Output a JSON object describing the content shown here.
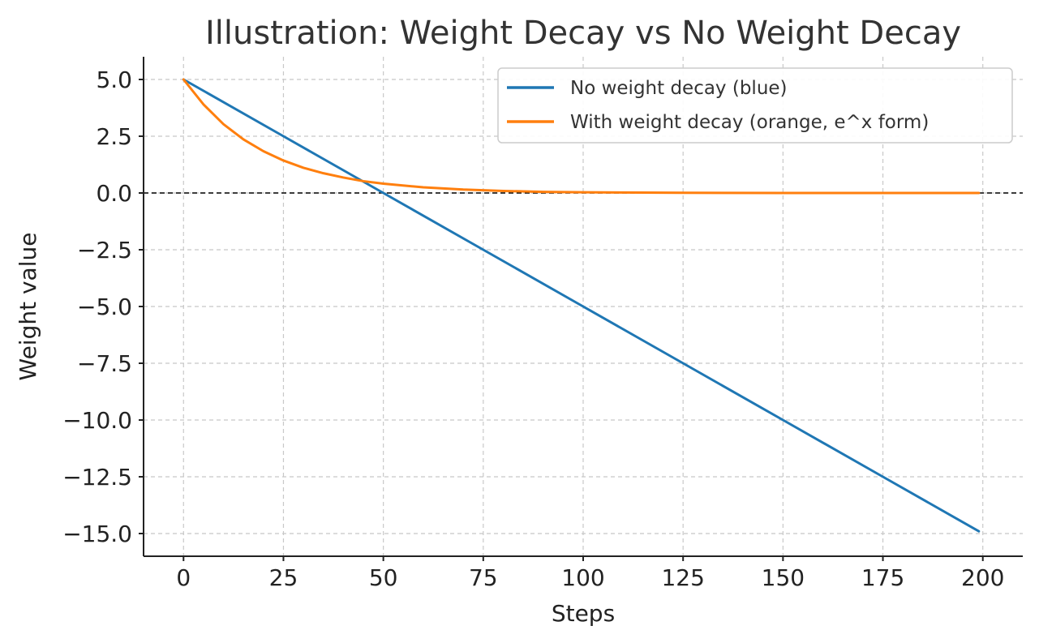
{
  "chart_data": {
    "type": "line",
    "title": "Illustration: Weight Decay vs No Weight Decay",
    "xlabel": "Steps",
    "ylabel": "Weight value",
    "xlim": [
      -10,
      210
    ],
    "ylim": [
      -16,
      6
    ],
    "xticks": [
      0,
      25,
      50,
      75,
      100,
      125,
      150,
      175,
      200
    ],
    "xtick_labels": [
      "0",
      "25",
      "50",
      "75",
      "100",
      "125",
      "150",
      "175",
      "200"
    ],
    "yticks": [
      5.0,
      2.5,
      0.0,
      -2.5,
      -5.0,
      -7.5,
      -10.0,
      -12.5,
      -15.0
    ],
    "ytick_labels": [
      "5.0",
      "2.5",
      "0.0",
      "−2.5",
      "−5.0",
      "−7.5",
      "−10.0",
      "−12.5",
      "−15.0"
    ],
    "grid": true,
    "legend_position": "top-right",
    "reference_line": {
      "y": 0,
      "style": "dashed",
      "color": "#000000"
    },
    "series": [
      {
        "name": "No weight decay (blue)",
        "color": "#1f77b4",
        "x": [
          0,
          25,
          50,
          75,
          100,
          125,
          150,
          175,
          199
        ],
        "y": [
          5.0,
          2.5,
          0.0,
          -2.5,
          -5.0,
          -7.5,
          -10.0,
          -12.5,
          -14.9
        ]
      },
      {
        "name": "With weight decay (orange, e^x form)",
        "color": "#ff7f0e",
        "x": [
          0,
          5,
          10,
          15,
          20,
          25,
          30,
          35,
          40,
          45,
          50,
          60,
          70,
          80,
          90,
          100,
          125,
          150,
          175,
          199
        ],
        "y": [
          5.0,
          3.9,
          3.03,
          2.36,
          1.84,
          1.43,
          1.11,
          0.87,
          0.68,
          0.52,
          0.41,
          0.25,
          0.15,
          0.09,
          0.05,
          0.03,
          0.01,
          0.0,
          0.0,
          0.0
        ]
      }
    ]
  }
}
